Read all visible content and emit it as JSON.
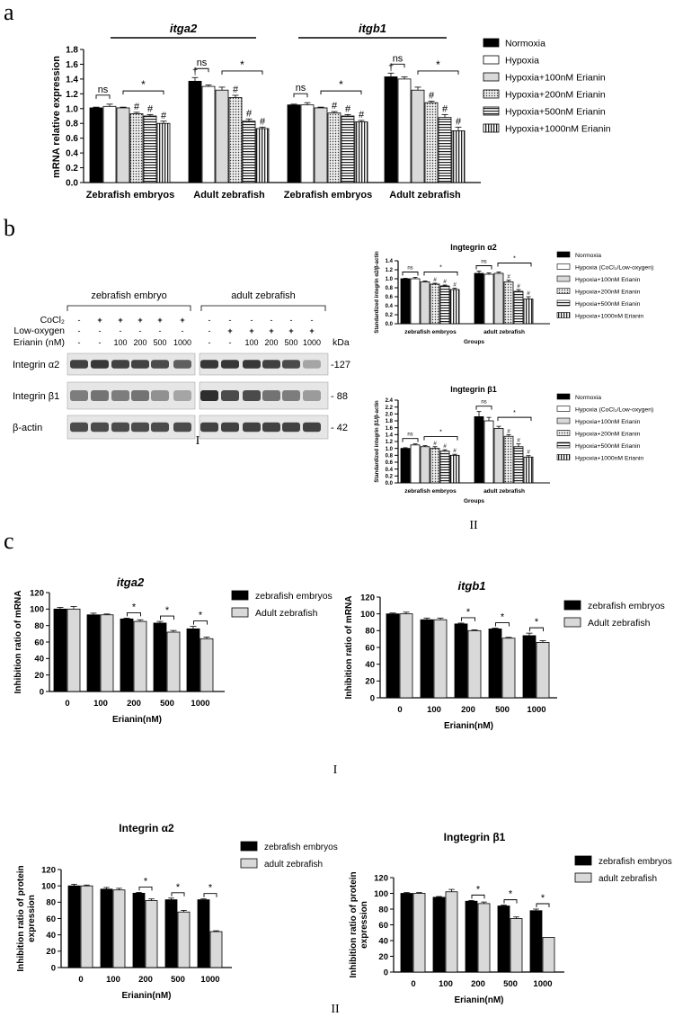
{
  "panel_letters": {
    "a": "a",
    "b": "b",
    "c": "c"
  },
  "roman": {
    "b_I": "I",
    "b_II": "II",
    "c_I": "I",
    "c_II": "II"
  },
  "colors": {
    "ink": "#000000",
    "light": "#d9d9d9",
    "mid": "#bdbdbd",
    "white": "#ffffff",
    "blot_bg": "#e6e6e6"
  },
  "chart_data": [
    {
      "id": "a",
      "type": "bar",
      "gene_titles": [
        "itga2",
        "itgb1"
      ],
      "ylabel": "mRNA relative expression",
      "yticks": [
        "0.0",
        "0.2",
        "0.4",
        "0.6",
        "0.8",
        "1.0",
        "1.2",
        "1.4",
        "1.6",
        "1.8"
      ],
      "ylim": [
        0,
        1.8
      ],
      "groups": [
        "Zebrafish embryos",
        "Adult zebrafish",
        "Zebrafish embryos",
        "Adult zebrafish"
      ],
      "legend": [
        "Normoxia",
        "Hypoxia",
        "Hypoxia+100nM Erianin",
        "Hypoxia+200nM Erianin",
        "Hypoxia+500nM Erianin",
        "Hypoxia+1000nM Erianin"
      ],
      "values": [
        [
          1.01,
          1.03,
          1.01,
          0.93,
          0.9,
          0.8
        ],
        [
          1.37,
          1.3,
          1.25,
          1.15,
          0.83,
          0.73
        ],
        [
          1.05,
          1.05,
          1.01,
          0.94,
          0.9,
          0.82
        ],
        [
          1.43,
          1.4,
          1.25,
          1.08,
          0.88,
          0.7
        ]
      ],
      "errors": [
        [
          0.01,
          0.03,
          0.01,
          0.02,
          0.02,
          0.03
        ],
        [
          0.05,
          0.02,
          0.04,
          0.03,
          0.03,
          0.02
        ],
        [
          0.01,
          0.03,
          0.01,
          0.02,
          0.02,
          0.02
        ],
        [
          0.05,
          0.03,
          0.04,
          0.02,
          0.04,
          0.05
        ]
      ],
      "marks": {
        "ns": "ns",
        "star": "*",
        "hash": "#",
        "dagger": "†"
      }
    },
    {
      "id": "b_upper",
      "type": "bar",
      "title": "Ingtegrin α2",
      "ylabel": "Standardized integrin α2/β-actin",
      "xlabel": "Groups",
      "yticks": [
        "0.0",
        "0.2",
        "0.4",
        "0.6",
        "0.8",
        "1.0",
        "1.2",
        "1.4"
      ],
      "ylim": [
        0,
        1.4
      ],
      "groups": [
        "zebrafish embryos",
        "adult zebrafish"
      ],
      "legend": [
        "Normoxia",
        "Hypoxia (CoCl₂/Low-oxygen)",
        "Hypoxia+100nM Erianin",
        "Hypoxia+200nM Erianin",
        "Hypoxia+500nM Erianin",
        "Hypoxia+1000nM Erianin"
      ],
      "values": [
        [
          1.0,
          1.0,
          0.93,
          0.88,
          0.84,
          0.76
        ],
        [
          1.12,
          1.1,
          1.12,
          0.93,
          0.72,
          0.55
        ]
      ],
      "errors": [
        [
          0.01,
          0.03,
          0.02,
          0.02,
          0.02,
          0.03
        ],
        [
          0.05,
          0.03,
          0.03,
          0.04,
          0.04,
          0.05
        ]
      ]
    },
    {
      "id": "b_lower",
      "type": "bar",
      "title": "Ingtegrin β1",
      "ylabel": "Standardized integrin β1/β-actin",
      "xlabel": "Groups",
      "yticks": [
        "0.0",
        "0.2",
        "0.4",
        "0.6",
        "0.8",
        "1.0",
        "1.2",
        "1.4",
        "1.6",
        "1.8",
        "2.0",
        "2.2",
        "2.4"
      ],
      "ylim": [
        0,
        2.4
      ],
      "groups": [
        "zebrafish embryos",
        "adult zebrafish"
      ],
      "legend": [
        "Normoxia",
        "Hypoxia (CoCl₂/Low-oxygen)",
        "Hypoxia+100nM Erianin",
        "Hypoxia+200nM Erianin",
        "Hypoxia+500nM Erianin",
        "Hypoxia+1000nM Erianin"
      ],
      "values": [
        [
          1.0,
          1.1,
          1.05,
          1.0,
          0.92,
          0.8
        ],
        [
          1.92,
          1.8,
          1.58,
          1.35,
          1.05,
          0.75
        ]
      ],
      "errors": [
        [
          0.02,
          0.03,
          0.03,
          0.05,
          0.04,
          0.03
        ],
        [
          0.15,
          0.1,
          0.06,
          0.05,
          0.08,
          0.04
        ]
      ]
    },
    {
      "id": "c1_left",
      "type": "bar",
      "title": "itga2",
      "ylabel": "Inhibition ratio of mRNA",
      "xlabel": "Erianin(nM)",
      "categories": [
        "0",
        "100",
        "200",
        "500",
        "1000"
      ],
      "yticks": [
        "0",
        "20",
        "40",
        "60",
        "80",
        "100",
        "120"
      ],
      "ylim": [
        0,
        120
      ],
      "series": [
        {
          "name": "zebrafish embryos",
          "values": [
            100,
            93,
            88,
            83,
            76
          ]
        },
        {
          "name": "Adult zebrafish",
          "values": [
            100,
            93,
            85,
            72,
            64
          ]
        }
      ],
      "errors": [
        [
          2,
          2,
          1,
          2,
          3
        ],
        [
          3,
          1,
          2,
          2,
          2
        ]
      ]
    },
    {
      "id": "c1_right",
      "type": "bar",
      "title": "itgb1",
      "ylabel": "Inhibition ratio of mRNA",
      "xlabel": "Erianin(nM)",
      "categories": [
        "0",
        "100",
        "200",
        "500",
        "1000"
      ],
      "yticks": [
        "0",
        "20",
        "40",
        "60",
        "80",
        "100",
        "120"
      ],
      "ylim": [
        0,
        120
      ],
      "series": [
        {
          "name": "zebrafish embryos",
          "values": [
            100,
            93,
            88,
            82,
            74
          ]
        },
        {
          "name": "Adult zebrafish",
          "values": [
            100,
            93,
            80,
            71,
            66
          ]
        }
      ],
      "errors": [
        [
          1,
          2,
          1,
          1,
          3
        ],
        [
          2,
          2,
          1,
          1,
          2
        ]
      ]
    },
    {
      "id": "c2_left",
      "type": "bar",
      "title": "Integrin α2",
      "ylabel": "Inhibition ratio of protein expression",
      "xlabel": "Erianin(nM)",
      "categories": [
        "0",
        "100",
        "200",
        "500",
        "1000"
      ],
      "yticks": [
        "0",
        "20",
        "40",
        "60",
        "80",
        "100",
        "120"
      ],
      "ylim": [
        0,
        120
      ],
      "series": [
        {
          "name": "zebrafish embryos",
          "values": [
            100,
            96,
            91,
            83,
            83
          ]
        },
        {
          "name": "adult zebrafish",
          "values": [
            100,
            95,
            82,
            68,
            44
          ]
        }
      ],
      "errors": [
        [
          2,
          2,
          1,
          2,
          1
        ],
        [
          1,
          2,
          2,
          2,
          1
        ]
      ]
    },
    {
      "id": "c2_right",
      "type": "bar",
      "title": "Ingtegrin β1",
      "ylabel": "Inhibition ratio of protein expression",
      "xlabel": "Erianin(nM)",
      "categories": [
        "0",
        "100",
        "200",
        "500",
        "1000"
      ],
      "yticks": [
        "0",
        "20",
        "40",
        "60",
        "80",
        "100",
        "120"
      ],
      "ylim": [
        0,
        120
      ],
      "series": [
        {
          "name": "zebrafish embryos",
          "values": [
            100,
            95,
            90,
            84,
            78
          ]
        },
        {
          "name": "adult zebrafish",
          "values": [
            100,
            102,
            87,
            68,
            44
          ]
        }
      ],
      "errors": [
        [
          1,
          1,
          1,
          1,
          2
        ],
        [
          1,
          3,
          2,
          2,
          0
        ]
      ]
    }
  ],
  "blot": {
    "group_labels": [
      "zebrafish embryo",
      "adult zebrafish"
    ],
    "row_labels": [
      "CoCl₂",
      "Low-oxygen",
      "Erianin (nM)"
    ],
    "cocl2": [
      "-",
      "+",
      "+",
      "+",
      "+",
      "+",
      "-",
      "-",
      "-",
      "-",
      "-",
      "-"
    ],
    "low_oxygen": [
      "-",
      "-",
      "-",
      "-",
      "-",
      "-",
      "-",
      "+",
      "+",
      "+",
      "+",
      "+"
    ],
    "erianin": [
      "-",
      "-",
      "100",
      "200",
      "500",
      "1000",
      "-",
      "-",
      "100",
      "200",
      "500",
      "1000"
    ],
    "kda_label": "kDa",
    "bands": [
      {
        "label": "Integrin α2",
        "kda": "-127",
        "intensity": [
          0.85,
          0.9,
          0.85,
          0.85,
          0.8,
          0.7,
          0.9,
          0.9,
          0.9,
          0.85,
          0.8,
          0.35
        ]
      },
      {
        "label": "Integrin β1",
        "kda": "- 88",
        "intensity": [
          0.55,
          0.6,
          0.55,
          0.6,
          0.45,
          0.35,
          0.95,
          0.8,
          0.8,
          0.6,
          0.55,
          0.4
        ]
      },
      {
        "label": "β-actin",
        "kda": "- 42",
        "intensity": [
          0.8,
          0.8,
          0.8,
          0.8,
          0.8,
          0.8,
          0.85,
          0.85,
          0.85,
          0.85,
          0.85,
          0.85
        ]
      }
    ]
  }
}
